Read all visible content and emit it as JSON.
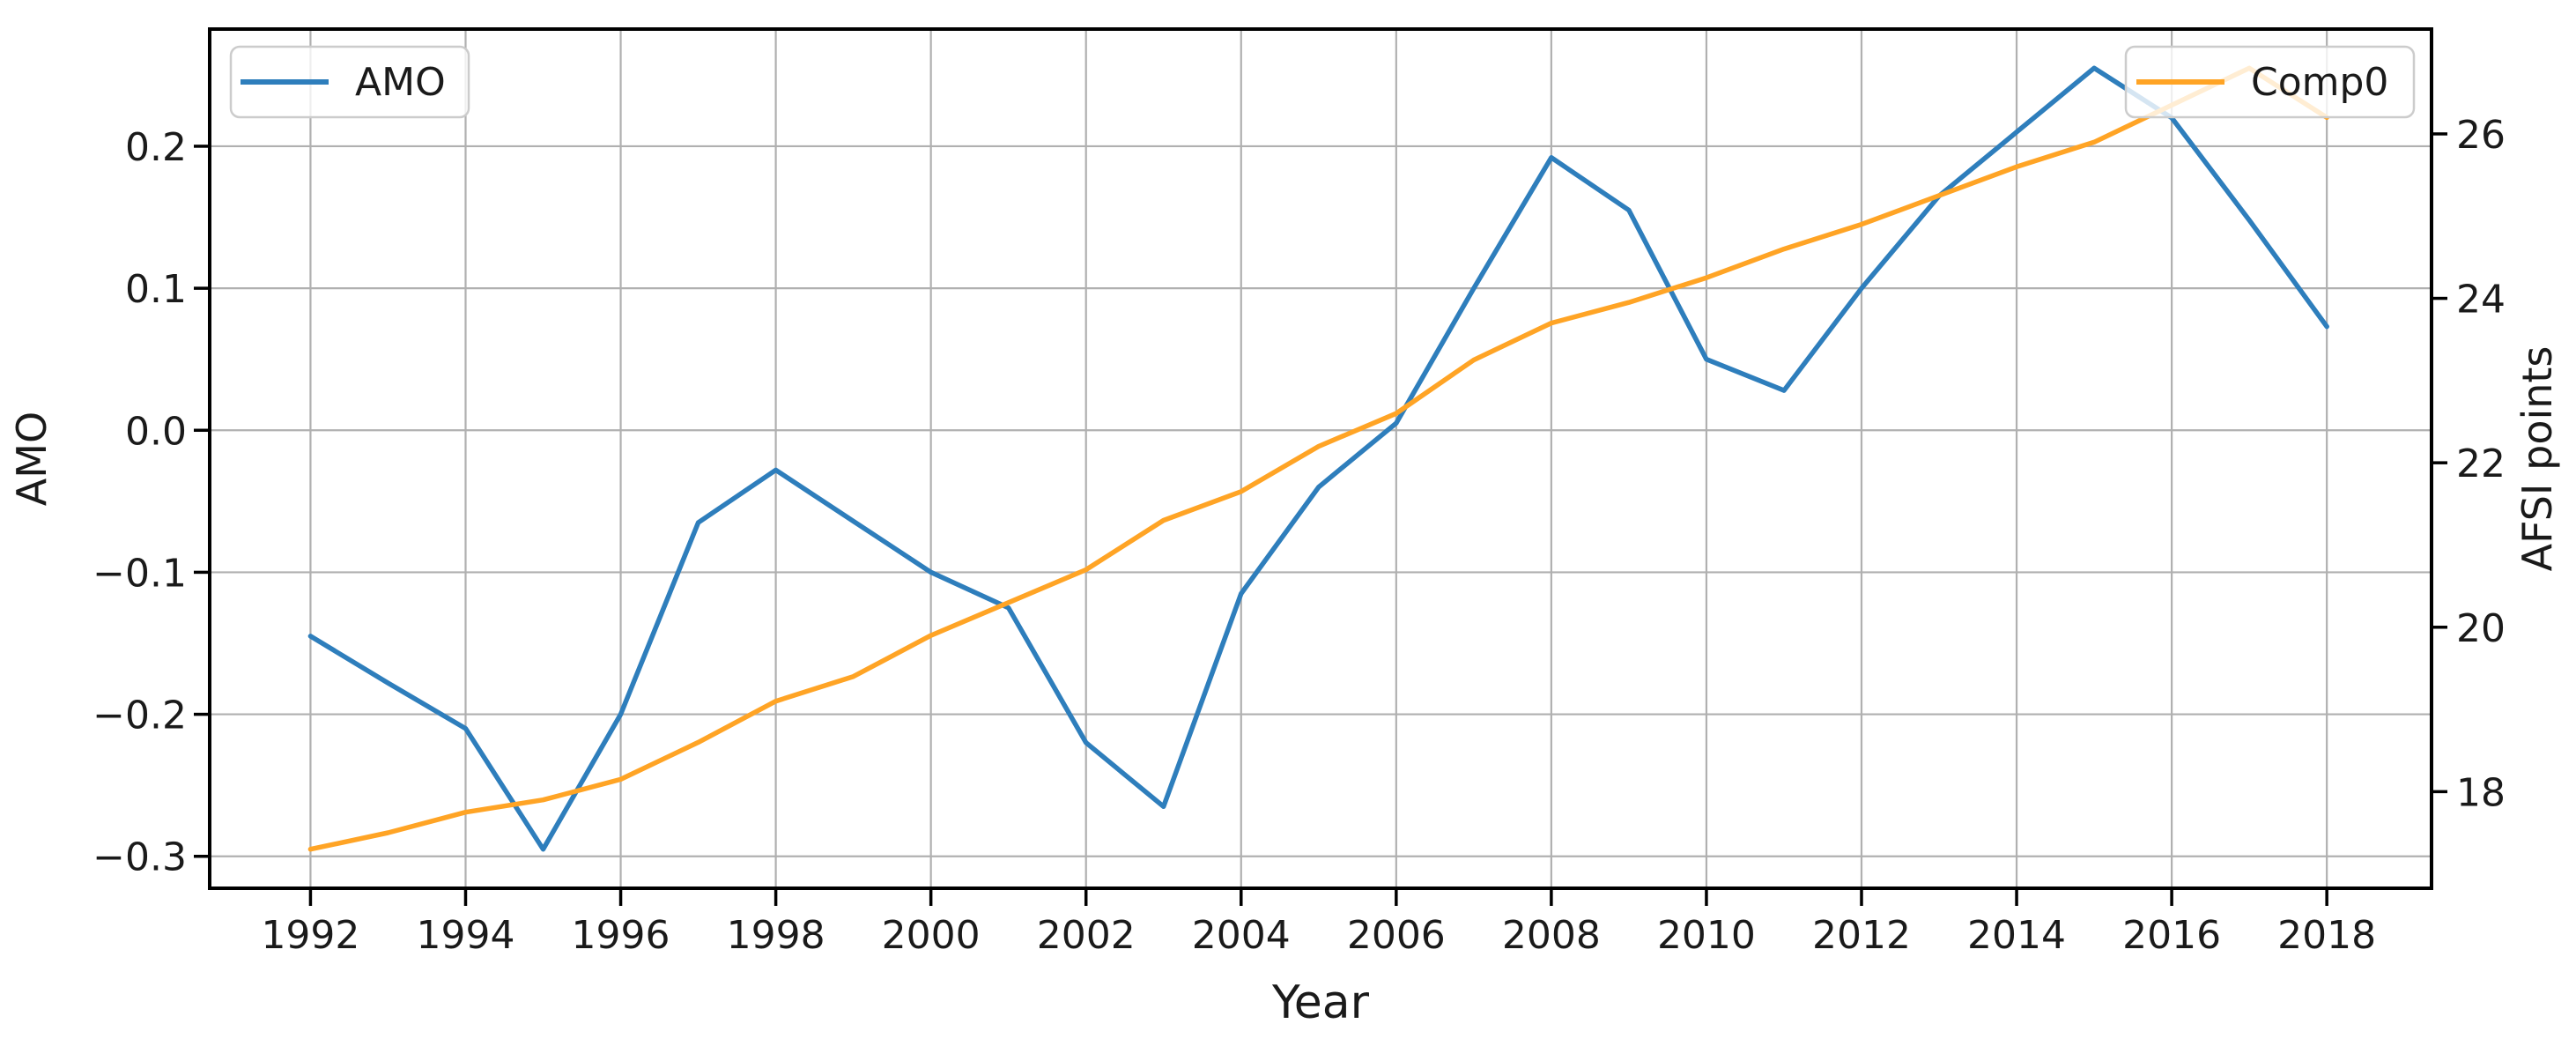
{
  "figure": {
    "background": "#ffffff"
  },
  "legend": {
    "amo_label": "AMO",
    "comp0_label": "Comp0"
  },
  "colors": {
    "amo_line": "#2e7ebc",
    "comp0_line": "#ffa425",
    "grid": "#b0b0b0",
    "spine": "#000000",
    "legend_border": "#cccccc",
    "text": "#1a1a1a"
  },
  "chart_data": {
    "type": "line",
    "title": "",
    "xlabel": "Year",
    "ylabel_left": "AMO",
    "ylabel_right": "AFSI points",
    "x": [
      1992,
      1993,
      1994,
      1995,
      1996,
      1997,
      1998,
      1999,
      2000,
      2001,
      2002,
      2003,
      2004,
      2005,
      2006,
      2007,
      2008,
      2009,
      2010,
      2011,
      2012,
      2013,
      2014,
      2015,
      2016,
      2017,
      2018
    ],
    "series": [
      {
        "name": "AMO",
        "axis": "left",
        "color": "#2e7ebc",
        "values": [
          -0.145,
          -0.178,
          -0.21,
          -0.295,
          -0.2,
          -0.065,
          -0.028,
          -0.064,
          -0.1,
          -0.125,
          -0.22,
          -0.265,
          -0.115,
          -0.04,
          0.005,
          0.1,
          0.192,
          0.155,
          0.05,
          0.028,
          0.1,
          0.165,
          0.21,
          0.255,
          0.22,
          0.148,
          0.073
        ]
      },
      {
        "name": "Comp0",
        "axis": "right",
        "color": "#ffa425",
        "values": [
          17.3,
          17.5,
          17.75,
          17.9,
          18.15,
          18.6,
          19.1,
          19.4,
          19.9,
          20.3,
          20.7,
          21.3,
          21.65,
          22.2,
          22.6,
          23.25,
          23.7,
          23.95,
          24.25,
          24.6,
          24.9,
          25.25,
          25.6,
          25.9,
          26.35,
          26.8,
          26.2
        ]
      }
    ],
    "x_ticks": [
      1992,
      1994,
      1996,
      1998,
      2000,
      2002,
      2004,
      2006,
      2008,
      2010,
      2012,
      2014,
      2016,
      2018
    ],
    "y_ticks_left": [
      0.2,
      0.1,
      0.0,
      -0.1,
      -0.2,
      -0.3
    ],
    "y_ticks_right": [
      26,
      24,
      22,
      20,
      18
    ],
    "xlim": [
      1990.7,
      2019.35
    ],
    "ylim_left": [
      -0.3225,
      0.2825
    ],
    "ylim_right": [
      16.825,
      27.275
    ],
    "grid": true,
    "legend_positions": [
      "upper left",
      "upper right"
    ]
  }
}
